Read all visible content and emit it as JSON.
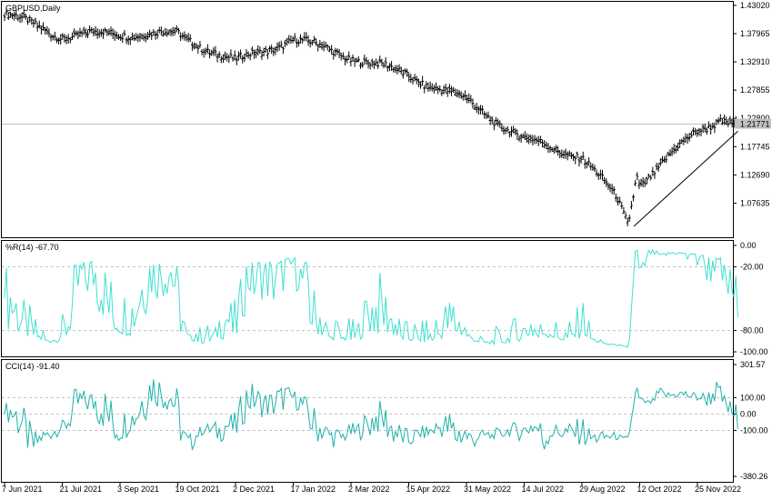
{
  "chart_data": [
    {
      "type": "ohlc",
      "title": "GBPUSD,Daily",
      "current_price": "1.21771",
      "yticks": [
        "1.43020",
        "1.37965",
        "1.32910",
        "1.27855",
        "1.22800",
        "1.17745",
        "1.12690",
        "1.07635"
      ],
      "ylim": [
        1.03,
        1.43
      ],
      "anchors": [
        {
          "x": "7 Jun 2021",
          "close": 1.415
        },
        {
          "x": "21 Jul 2021",
          "close": 1.375
        },
        {
          "x": "3 Sep 2021",
          "close": 1.38
        },
        {
          "x": "19 Oct 2021",
          "close": 1.378
        },
        {
          "x": "2 Dec 2021",
          "close": 1.329
        },
        {
          "x": "17 Jan 2022",
          "close": 1.37
        },
        {
          "x": "2 Mar 2022",
          "close": 1.338
        },
        {
          "x": "15 Apr 2022",
          "close": 1.305
        },
        {
          "x": "31 May 2022",
          "close": 1.26
        },
        {
          "x": "14 Jul 2022",
          "close": 1.19
        },
        {
          "x": "29 Aug 2022",
          "close": 1.16
        },
        {
          "x": "12 Oct 2022",
          "close": 1.11
        },
        {
          "x": "25 Nov 2022",
          "close": 1.205
        }
      ],
      "trendline": {
        "from": {
          "x": "26 Sep 2022",
          "y": 1.035
        },
        "to": {
          "x": "9 Dec 2022",
          "y": 1.205
        }
      }
    },
    {
      "type": "line",
      "title": "%R(14) -67.70",
      "series_name": "%R(14)",
      "last_value": -67.7,
      "yticks": [
        "0.00",
        "-20.00",
        "-80.00",
        "-100.00"
      ],
      "levels": [
        -20,
        -80
      ],
      "ylim": [
        -100,
        0
      ]
    },
    {
      "type": "line",
      "title": "CCI(14) -91.40",
      "series_name": "CCI(14)",
      "last_value": -91.4,
      "yticks": [
        "301.57",
        "100.00",
        "0.00",
        "-100.00",
        "-380.26"
      ],
      "levels": [
        100,
        0,
        -100
      ],
      "ylim": [
        -380.26,
        301.57
      ]
    }
  ],
  "xticks": [
    "7 Jun 2021",
    "21 Jul 2021",
    "3 Sep 2021",
    "19 Oct 2021",
    "2 Dec 2021",
    "17 Jan 2022",
    "2 Mar 2022",
    "15 Apr 2022",
    "31 May 2022",
    "14 Jul 2022",
    "29 Aug 2022",
    "12 Oct 2022",
    "25 Nov 2022"
  ],
  "colors": {
    "bars": "#000000",
    "wr_line": "#40E0D0",
    "cci_line": "#20B2AA",
    "grid_dash": "#c0c0c0",
    "price_line": "#c0c0c0"
  }
}
